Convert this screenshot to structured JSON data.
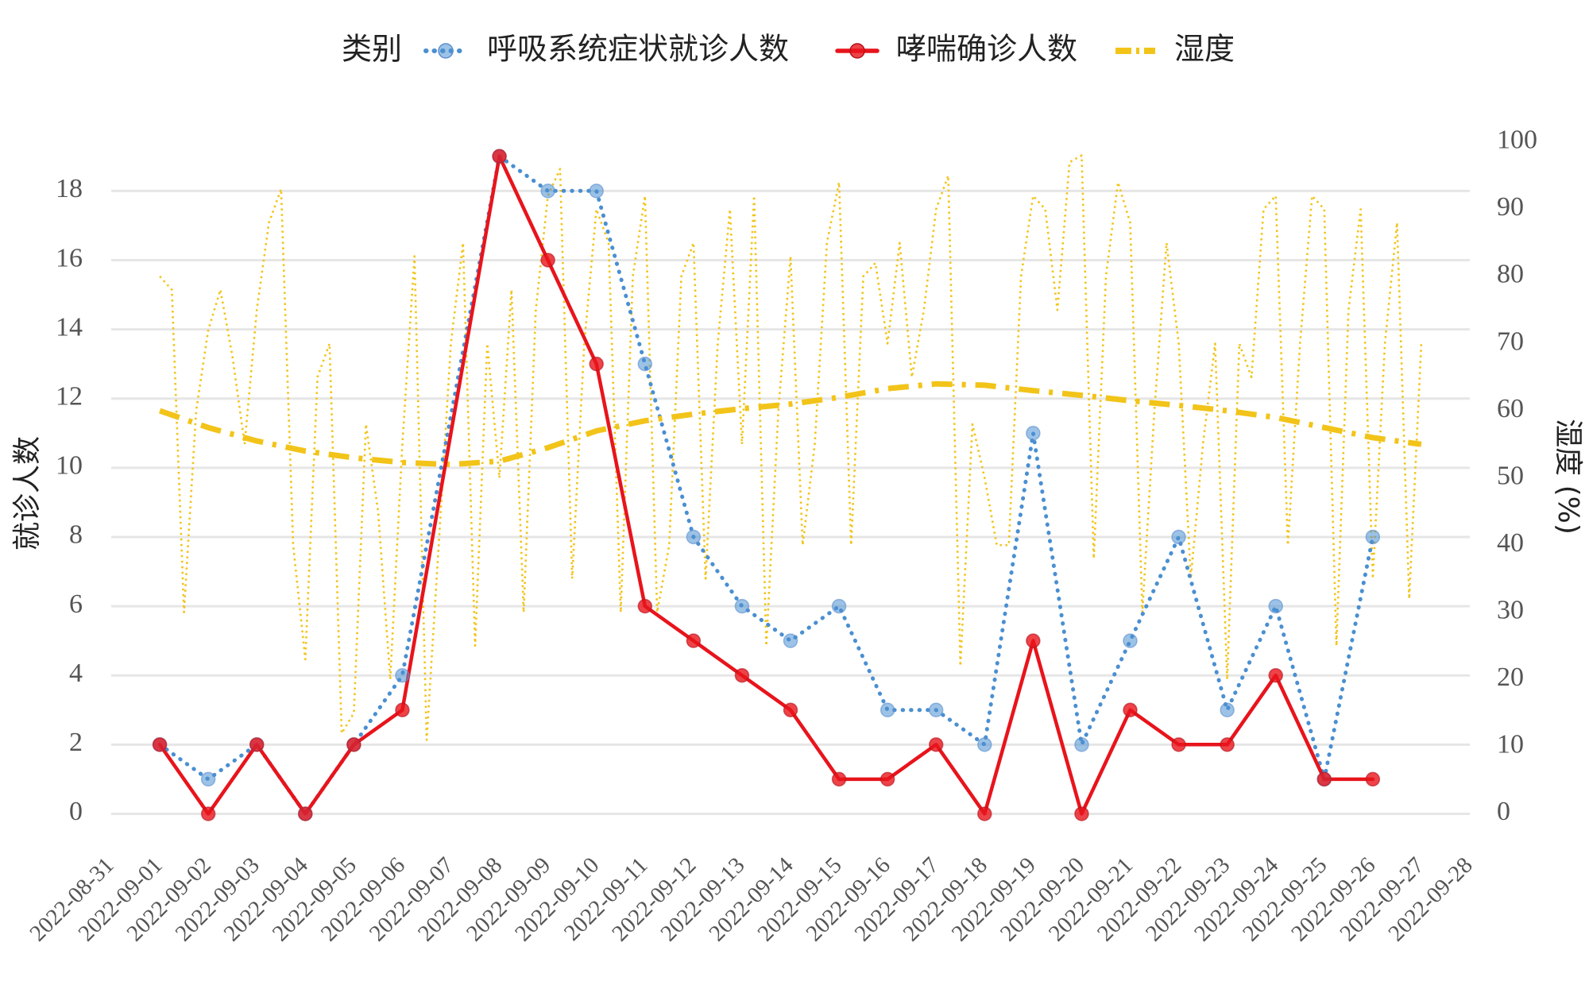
{
  "chart_data": {
    "type": "line",
    "legend_title": "类别",
    "ylabel": "就诊人数",
    "y2label": "湿度 (%)",
    "xlim": [
      "2022-08-31",
      "2022-09-28"
    ],
    "xticks": [
      "2022-08-31",
      "2022-09-01",
      "2022-09-02",
      "2022-09-03",
      "2022-09-04",
      "2022-09-05",
      "2022-09-06",
      "2022-09-07",
      "2022-09-08",
      "2022-09-09",
      "2022-09-10",
      "2022-09-11",
      "2022-09-12",
      "2022-09-13",
      "2022-09-14",
      "2022-09-15",
      "2022-09-16",
      "2022-09-17",
      "2022-09-18",
      "2022-09-19",
      "2022-09-20",
      "2022-09-21",
      "2022-09-22",
      "2022-09-23",
      "2022-09-24",
      "2022-09-25",
      "2022-09-26",
      "2022-09-27",
      "2022-09-28"
    ],
    "ylim": [
      -1,
      19.5
    ],
    "yticks": [
      0,
      2,
      4,
      6,
      8,
      10,
      12,
      14,
      16,
      18
    ],
    "y2lim": [
      -5.15,
      100.45
    ],
    "y2ticks": [
      0,
      10,
      20,
      30,
      40,
      50,
      60,
      70,
      80,
      90,
      100
    ],
    "grid": true,
    "legend": "top",
    "series": [
      {
        "name": "呼吸系统症状就诊人数",
        "color": "#4a8fd1",
        "style": "dotted",
        "markers": true,
        "x": [
          "2022-09-01",
          "2022-09-02",
          "2022-09-03",
          "2022-09-04",
          "2022-09-05",
          "2022-09-06",
          "2022-09-08",
          "2022-09-09",
          "2022-09-10",
          "2022-09-11",
          "2022-09-12",
          "2022-09-13",
          "2022-09-14",
          "2022-09-15",
          "2022-09-16",
          "2022-09-17",
          "2022-09-18",
          "2022-09-19",
          "2022-09-20",
          "2022-09-21",
          "2022-09-22",
          "2022-09-23",
          "2022-09-24",
          "2022-09-25",
          "2022-09-26"
        ],
        "values": [
          2,
          1,
          2,
          0,
          2,
          4,
          19,
          18,
          18,
          13,
          8,
          6,
          5,
          6,
          3,
          3,
          2,
          11,
          2,
          5,
          8,
          3,
          6,
          1,
          8
        ]
      },
      {
        "name": "哮喘确诊人数",
        "color": "#e8141c",
        "style": "solid",
        "markers": true,
        "x": [
          "2022-09-01",
          "2022-09-02",
          "2022-09-03",
          "2022-09-04",
          "2022-09-05",
          "2022-09-06",
          "2022-09-08",
          "2022-09-09",
          "2022-09-10",
          "2022-09-11",
          "2022-09-12",
          "2022-09-13",
          "2022-09-14",
          "2022-09-15",
          "2022-09-16",
          "2022-09-17",
          "2022-09-18",
          "2022-09-19",
          "2022-09-20",
          "2022-09-21",
          "2022-09-22",
          "2022-09-23",
          "2022-09-24",
          "2022-09-25",
          "2022-09-26"
        ],
        "values": [
          2,
          0,
          2,
          0,
          2,
          3,
          19,
          16,
          13,
          6,
          5,
          4,
          3,
          1,
          1,
          2,
          0,
          5,
          0,
          3,
          2,
          2,
          4,
          1,
          1
        ]
      },
      {
        "name": "湿度",
        "color": "#f2c419",
        "style": "dashdot",
        "axis": "y2",
        "x": [
          "2022-09-01",
          "2022-09-02",
          "2022-09-03",
          "2022-09-04",
          "2022-09-05",
          "2022-09-06",
          "2022-09-07",
          "2022-09-08",
          "2022-09-09",
          "2022-09-10",
          "2022-09-11",
          "2022-09-12",
          "2022-09-13",
          "2022-09-14",
          "2022-09-15",
          "2022-09-16",
          "2022-09-17",
          "2022-09-18",
          "2022-09-19",
          "2022-09-20",
          "2022-09-21",
          "2022-09-22",
          "2022-09-23",
          "2022-09-24",
          "2022-09-25",
          "2022-09-26",
          "2022-09-27"
        ],
        "values": [
          60,
          57.5,
          55.5,
          54,
          53,
          52.3,
          52,
          52.5,
          54.5,
          57,
          58.5,
          59.5,
          60.3,
          61,
          62,
          63.3,
          64,
          63.8,
          63,
          62.3,
          61.5,
          60.8,
          60,
          59,
          57.5,
          56,
          55
        ]
      },
      {
        "color": "#f2c419",
        "style": "fine-dotted",
        "axis": "y2",
        "x": [
          "2022-09-01T00:00",
          "2022-09-01T06:00",
          "2022-09-01T12:00",
          "2022-09-01T18:00",
          "2022-09-02T00:00",
          "2022-09-02T06:00",
          "2022-09-02T12:00",
          "2022-09-02T18:00",
          "2022-09-03T00:00",
          "2022-09-03T06:00",
          "2022-09-03T12:00",
          "2022-09-03T18:00",
          "2022-09-04T00:00",
          "2022-09-04T06:00",
          "2022-09-04T12:00",
          "2022-09-04T18:00",
          "2022-09-05T00:00",
          "2022-09-05T06:00",
          "2022-09-05T12:00",
          "2022-09-05T18:00",
          "2022-09-06T00:00",
          "2022-09-06T06:00",
          "2022-09-06T12:00",
          "2022-09-06T18:00",
          "2022-09-07T00:00",
          "2022-09-07T06:00",
          "2022-09-07T12:00",
          "2022-09-07T18:00",
          "2022-09-08T00:00",
          "2022-09-08T06:00",
          "2022-09-08T12:00",
          "2022-09-08T18:00",
          "2022-09-09T00:00",
          "2022-09-09T06:00",
          "2022-09-09T12:00",
          "2022-09-09T18:00",
          "2022-09-10T00:00",
          "2022-09-10T06:00",
          "2022-09-10T12:00",
          "2022-09-10T18:00",
          "2022-09-11T00:00",
          "2022-09-11T06:00",
          "2022-09-11T12:00",
          "2022-09-11T18:00",
          "2022-09-12T00:00",
          "2022-09-12T06:00",
          "2022-09-12T12:00",
          "2022-09-12T18:00",
          "2022-09-13T00:00",
          "2022-09-13T06:00",
          "2022-09-13T12:00",
          "2022-09-13T18:00",
          "2022-09-14T00:00",
          "2022-09-14T06:00",
          "2022-09-14T12:00",
          "2022-09-14T18:00",
          "2022-09-15T00:00",
          "2022-09-15T06:00",
          "2022-09-15T12:00",
          "2022-09-15T18:00",
          "2022-09-16T00:00",
          "2022-09-16T06:00",
          "2022-09-16T12:00",
          "2022-09-16T18:00",
          "2022-09-17T00:00",
          "2022-09-17T06:00",
          "2022-09-17T12:00",
          "2022-09-17T18:00",
          "2022-09-18T00:00",
          "2022-09-18T06:00",
          "2022-09-18T12:00",
          "2022-09-18T18:00",
          "2022-09-19T00:00",
          "2022-09-19T06:00",
          "2022-09-19T12:00",
          "2022-09-19T18:00",
          "2022-09-20T00:00",
          "2022-09-20T06:00",
          "2022-09-20T12:00",
          "2022-09-20T18:00",
          "2022-09-21T00:00",
          "2022-09-21T06:00",
          "2022-09-21T12:00",
          "2022-09-21T18:00",
          "2022-09-22T00:00",
          "2022-09-22T06:00",
          "2022-09-22T12:00",
          "2022-09-22T18:00",
          "2022-09-23T00:00",
          "2022-09-23T06:00",
          "2022-09-23T12:00",
          "2022-09-23T18:00",
          "2022-09-24T00:00",
          "2022-09-24T06:00",
          "2022-09-24T12:00",
          "2022-09-24T18:00",
          "2022-09-25T00:00",
          "2022-09-25T06:00",
          "2022-09-25T12:00",
          "2022-09-25T18:00",
          "2022-09-26T00:00",
          "2022-09-26T06:00",
          "2022-09-26T12:00",
          "2022-09-26T18:00",
          "2022-09-27T00:00"
        ],
        "values": [
          80,
          78,
          30,
          60,
          72,
          78,
          68,
          55,
          75,
          88,
          93,
          40,
          23,
          65,
          70,
          12,
          15,
          58,
          45,
          20,
          55,
          83,
          11,
          40,
          70,
          85,
          25,
          70,
          50,
          78,
          30,
          75,
          92,
          96,
          35,
          70,
          90,
          85,
          30,
          80,
          92,
          30,
          40,
          80,
          85,
          35,
          70,
          90,
          55,
          92,
          25,
          60,
          83,
          40,
          55,
          85,
          94,
          40,
          80,
          82,
          70,
          85,
          65,
          75,
          90,
          95,
          22,
          58,
          50,
          40,
          40,
          80,
          92,
          90,
          75,
          97,
          98,
          38,
          80,
          94,
          88,
          30,
          60,
          85,
          70,
          35,
          55,
          70,
          20,
          70,
          65,
          90,
          92,
          40,
          70,
          92,
          90,
          25,
          75,
          90,
          35,
          70,
          88,
          32,
          70
        ]
      }
    ]
  }
}
